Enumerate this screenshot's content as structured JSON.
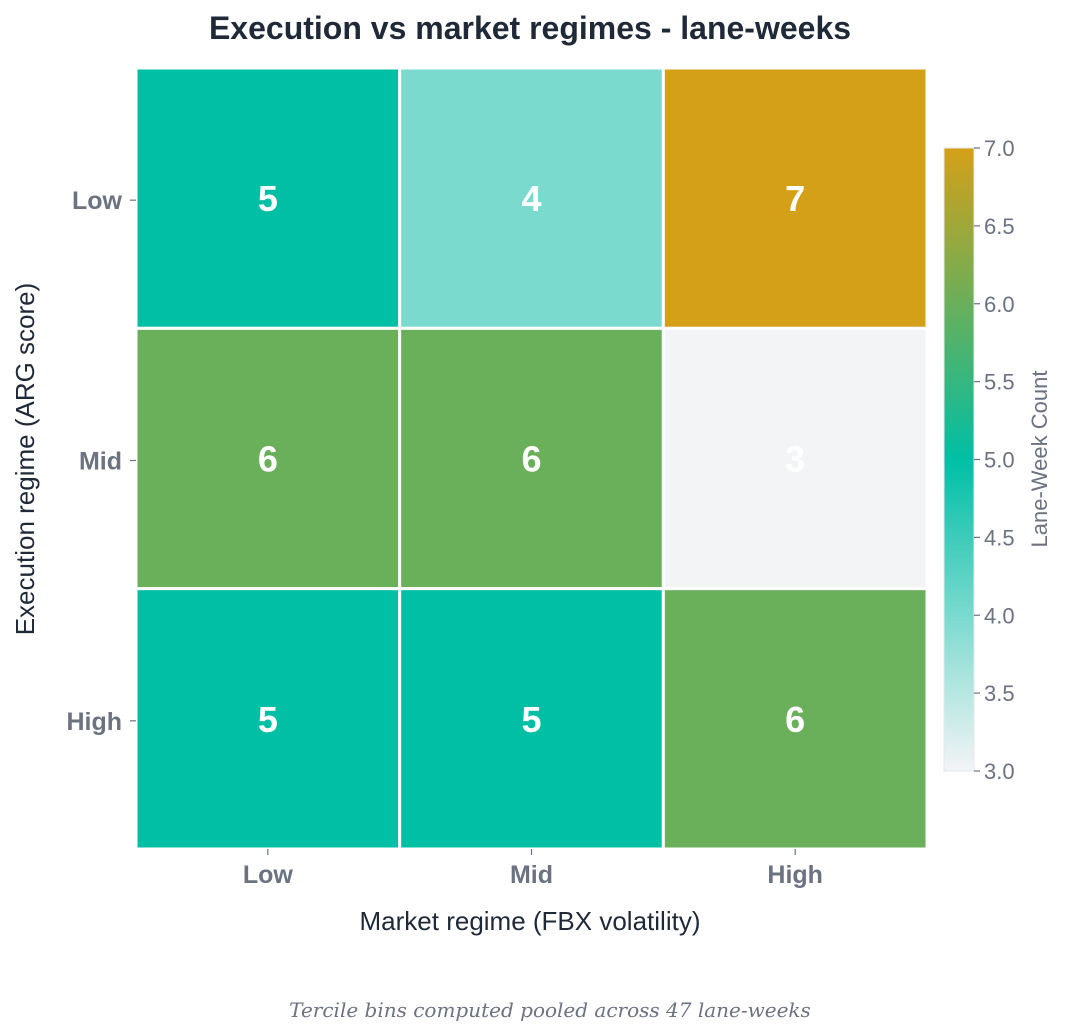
{
  "chart_data": {
    "type": "heatmap",
    "title": "Execution vs market regimes - lane-weeks",
    "xlabel": "Market regime (FBX volatility)",
    "ylabel": "Execution regime (ARG score)",
    "x_categories": [
      "Low",
      "Mid",
      "High"
    ],
    "y_categories": [
      "Low",
      "Mid",
      "High"
    ],
    "values": [
      [
        5,
        4,
        7
      ],
      [
        6,
        6,
        3
      ],
      [
        5,
        5,
        6
      ]
    ],
    "colorbar": {
      "label": "Lane-Week Count",
      "min": 3.0,
      "max": 7.0,
      "ticks": [
        "3.0",
        "3.5",
        "4.0",
        "4.5",
        "5.0",
        "5.5",
        "6.0",
        "6.5",
        "7.0"
      ],
      "color_stops": [
        {
          "value": 3.0,
          "color": "#f3f4f6"
        },
        {
          "value": 5.0,
          "color": "#00bfa5"
        },
        {
          "value": 6.0,
          "color": "#6aaf5a"
        },
        {
          "value": 7.0,
          "color": "#d4a017"
        }
      ]
    },
    "caption": "Tercile bins computed pooled across 47 lane-weeks"
  }
}
